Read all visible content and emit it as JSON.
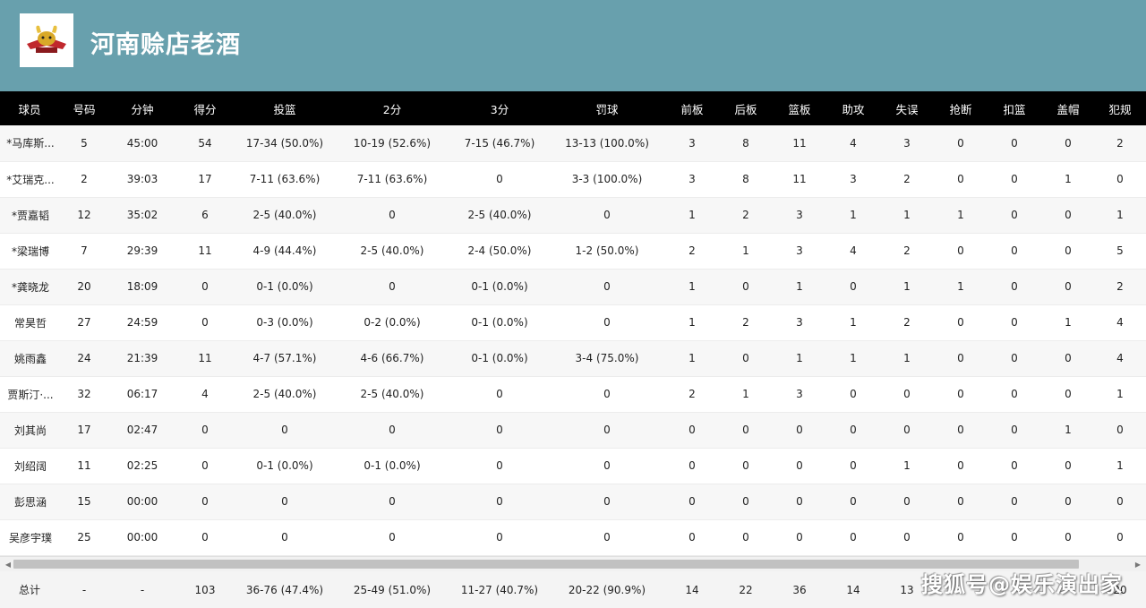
{
  "header": {
    "team_name": "河南赊店老酒",
    "logo_icon": "team-logo-bull-icon"
  },
  "columns": [
    "球员",
    "号码",
    "分钟",
    "得分",
    "投篮",
    "2分",
    "3分",
    "罚球",
    "前板",
    "后板",
    "篮板",
    "助攻",
    "失误",
    "抢断",
    "扣篮",
    "盖帽",
    "犯规"
  ],
  "rows": [
    [
      "*马库斯...",
      "5",
      "45:00",
      "54",
      "17-34 (50.0%)",
      "10-19 (52.6%)",
      "7-15 (46.7%)",
      "13-13 (100.0%)",
      "3",
      "8",
      "11",
      "4",
      "3",
      "0",
      "0",
      "0",
      "2"
    ],
    [
      "*艾瑞克...",
      "2",
      "39:03",
      "17",
      "7-11 (63.6%)",
      "7-11 (63.6%)",
      "0",
      "3-3 (100.0%)",
      "3",
      "8",
      "11",
      "3",
      "2",
      "0",
      "0",
      "1",
      "0"
    ],
    [
      "*贾嘉韬",
      "12",
      "35:02",
      "6",
      "2-5 (40.0%)",
      "0",
      "2-5 (40.0%)",
      "0",
      "1",
      "2",
      "3",
      "1",
      "1",
      "1",
      "0",
      "0",
      "1"
    ],
    [
      "*梁瑞博",
      "7",
      "29:39",
      "11",
      "4-9 (44.4%)",
      "2-5 (40.0%)",
      "2-4 (50.0%)",
      "1-2 (50.0%)",
      "2",
      "1",
      "3",
      "4",
      "2",
      "0",
      "0",
      "0",
      "5"
    ],
    [
      "*龚晓龙",
      "20",
      "18:09",
      "0",
      "0-1 (0.0%)",
      "0",
      "0-1 (0.0%)",
      "0",
      "1",
      "0",
      "1",
      "0",
      "1",
      "1",
      "0",
      "0",
      "2"
    ],
    [
      "常昊哲",
      "27",
      "24:59",
      "0",
      "0-3 (0.0%)",
      "0-2 (0.0%)",
      "0-1 (0.0%)",
      "0",
      "1",
      "2",
      "3",
      "1",
      "2",
      "0",
      "0",
      "1",
      "4"
    ],
    [
      "姚雨鑫",
      "24",
      "21:39",
      "11",
      "4-7 (57.1%)",
      "4-6 (66.7%)",
      "0-1 (0.0%)",
      "3-4 (75.0%)",
      "1",
      "0",
      "1",
      "1",
      "1",
      "0",
      "0",
      "0",
      "4"
    ],
    [
      "贾斯汀·...",
      "32",
      "06:17",
      "4",
      "2-5 (40.0%)",
      "2-5 (40.0%)",
      "0",
      "0",
      "2",
      "1",
      "3",
      "0",
      "0",
      "0",
      "0",
      "0",
      "1"
    ],
    [
      "刘其尚",
      "17",
      "02:47",
      "0",
      "0",
      "0",
      "0",
      "0",
      "0",
      "0",
      "0",
      "0",
      "0",
      "0",
      "0",
      "1",
      "0"
    ],
    [
      "刘绍阔",
      "11",
      "02:25",
      "0",
      "0-1 (0.0%)",
      "0-1 (0.0%)",
      "0",
      "0",
      "0",
      "0",
      "0",
      "0",
      "1",
      "0",
      "0",
      "0",
      "1"
    ],
    [
      "彭思涵",
      "15",
      "00:00",
      "0",
      "0",
      "0",
      "0",
      "0",
      "0",
      "0",
      "0",
      "0",
      "0",
      "0",
      "0",
      "0",
      "0"
    ],
    [
      "吴彦宇璞",
      "25",
      "00:00",
      "0",
      "0",
      "0",
      "0",
      "0",
      "0",
      "0",
      "0",
      "0",
      "0",
      "0",
      "0",
      "0",
      "0"
    ]
  ],
  "totals": [
    "总计",
    "-",
    "-",
    "103",
    "36-76 (47.4%)",
    "25-49 (51.0%)",
    "11-27 (40.7%)",
    "20-22 (90.9%)",
    "14",
    "22",
    "36",
    "14",
    "13",
    "",
    "",
    "",
    "20"
  ],
  "scrollbar": {
    "left_arrow": "◀",
    "right_arrow": "▶"
  },
  "watermark": "搜狐号@娱乐演出家",
  "colors": {
    "header_bg": "#68a0ad",
    "table_header_bg": "#000000"
  }
}
